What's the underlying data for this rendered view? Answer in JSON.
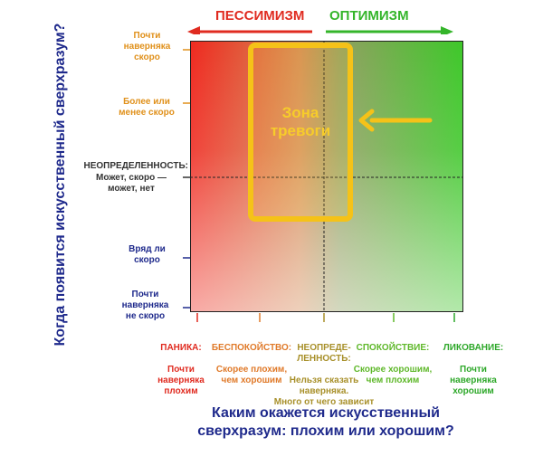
{
  "header": {
    "pessimism_label": "ПЕССИМИЗМ",
    "optimism_label": "ОПТИМИЗМ",
    "pessimism_color": "#e02b20",
    "optimism_color": "#34b52a"
  },
  "y_axis": {
    "title": "Когда появится искусственный сверхразум?",
    "title_color": "#1f2a8c",
    "labels": [
      {
        "text": "Почти\nнаверняка\nскоро",
        "color": "#e0901a"
      },
      {
        "text": "Более или\nменее скоро",
        "color": "#e0901a"
      },
      {
        "text": "НЕОПРЕДЕЛЕННОСТЬ:",
        "color": "#333333"
      },
      {
        "text": "Может, скоро —\nможет, нет",
        "color": "#333333"
      },
      {
        "text": "Вряд ли\nскоро",
        "color": "#1f2a8c"
      },
      {
        "text": "Почти\nнаверняка\nне скоро",
        "color": "#1f2a8c"
      }
    ]
  },
  "x_axis": {
    "title_line1": "Каким окажется искусственный",
    "title_line2": "сверхразум: плохим или хорошим?",
    "title_color": "#1f2a8c",
    "labels": [
      {
        "title": "ПАНИКА:",
        "text": "Почти\nнаверняка\nплохим",
        "color": "#e02b20"
      },
      {
        "title": "БЕСПОКОЙСТВО:",
        "text": "Скорее плохим,\nчем хорошим",
        "color": "#e07a2a"
      },
      {
        "title": "НЕОПРЕДЕ-\nЛЕННОСТЬ:",
        "text": "Нельзя сказать\nнаверняка.\nМного от чего зависит",
        "color": "#a8902a"
      },
      {
        "title": "СПОКОЙСТВИЕ:",
        "text": "Скорее хорошим,\nчем плохим",
        "color": "#5fb82a"
      },
      {
        "title": "ЛИКОВАНИЕ:",
        "text": "Почти\nнаверняка\nхорошим",
        "color": "#2ea82a"
      }
    ]
  },
  "zone": {
    "label": "Зона\nтревоги",
    "color": "#f5c218",
    "arrow_icon": "arrow-left-icon"
  }
}
